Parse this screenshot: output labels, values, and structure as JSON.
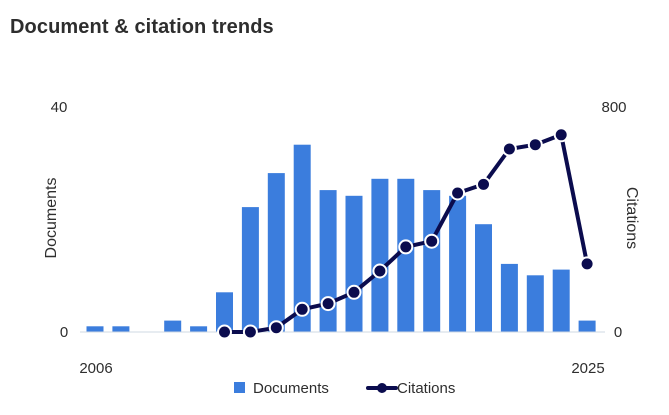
{
  "chart_data": {
    "type": "bar",
    "title": "Document & citation trends",
    "x": [
      2006,
      2007,
      2008,
      2009,
      2010,
      2011,
      2012,
      2013,
      2014,
      2015,
      2016,
      2017,
      2018,
      2019,
      2020,
      2021,
      2022,
      2023,
      2024,
      2025
    ],
    "x_tick_labels": [
      "2006",
      "2025"
    ],
    "series": [
      {
        "name": "Documents",
        "type": "bar",
        "axis": "left",
        "color": "#3b7ddd",
        "values": [
          1,
          1,
          0,
          2,
          1,
          7,
          22,
          28,
          33,
          25,
          24,
          27,
          27,
          25,
          24,
          19,
          12,
          10,
          11,
          2
        ]
      },
      {
        "name": "Citations",
        "type": "line",
        "axis": "right",
        "color": "#0b0c4e",
        "values": [
          null,
          null,
          null,
          null,
          null,
          0,
          0,
          15,
          80,
          100,
          140,
          215,
          300,
          320,
          490,
          520,
          645,
          660,
          695,
          240
        ]
      }
    ],
    "ylabel_left": "Documents",
    "ylabel_right": "Citations",
    "ylim_left": [
      0,
      40
    ],
    "ylim_right": [
      0,
      800
    ],
    "y_ticks_left": [
      "0",
      "40"
    ],
    "y_ticks_right": [
      "0",
      "800"
    ],
    "grid": false,
    "legend_position": "bottom"
  }
}
